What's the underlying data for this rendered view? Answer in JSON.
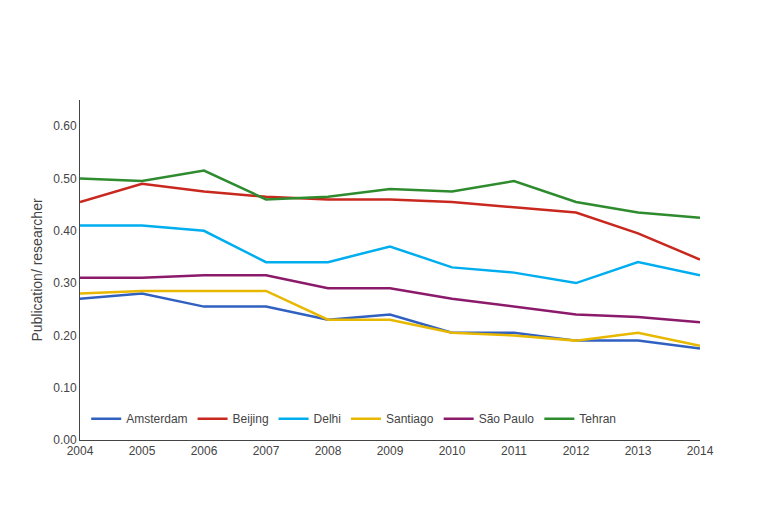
{
  "chart_data": {
    "type": "line",
    "x": [
      2004,
      2005,
      2006,
      2007,
      2008,
      2009,
      2010,
      2011,
      2012,
      2013,
      2014
    ],
    "series": [
      {
        "name": "Amsterdam",
        "color": "#3060C0",
        "values": [
          0.27,
          0.28,
          0.255,
          0.255,
          0.23,
          0.24,
          0.205,
          0.205,
          0.19,
          0.19,
          0.175
        ]
      },
      {
        "name": "Beijing",
        "color": "#C8281E",
        "values": [
          0.455,
          0.49,
          0.475,
          0.465,
          0.46,
          0.46,
          0.455,
          0.445,
          0.435,
          0.395,
          0.345
        ]
      },
      {
        "name": "Delhi",
        "color": "#00AEEF",
        "values": [
          0.41,
          0.41,
          0.4,
          0.34,
          0.34,
          0.37,
          0.33,
          0.32,
          0.3,
          0.34,
          0.315
        ]
      },
      {
        "name": "Santiago",
        "color": "#E8B800",
        "values": [
          0.28,
          0.285,
          0.285,
          0.285,
          0.23,
          0.23,
          0.205,
          0.2,
          0.19,
          0.205,
          0.18
        ]
      },
      {
        "name": "São Paulo",
        "color": "#8B1A6B",
        "values": [
          0.31,
          0.31,
          0.315,
          0.315,
          0.29,
          0.29,
          0.27,
          0.255,
          0.24,
          0.235,
          0.225
        ]
      },
      {
        "name": "Tehran",
        "color": "#2E8B2E",
        "values": [
          0.5,
          0.495,
          0.515,
          0.46,
          0.465,
          0.48,
          0.475,
          0.495,
          0.455,
          0.435,
          0.425
        ]
      }
    ],
    "ylabel": "Publication/ researcher",
    "xlim": [
      2004,
      2014
    ],
    "xticks": [
      2004,
      2005,
      2006,
      2007,
      2008,
      2009,
      2010,
      2011,
      2012,
      2013,
      2014
    ],
    "ylim": [
      0.0,
      0.65
    ],
    "yticks": [
      {
        "value": 0.0,
        "label": "0.00"
      },
      {
        "value": 0.1,
        "label": "0.10"
      },
      {
        "value": 0.2,
        "label": "0.20"
      },
      {
        "value": 0.3,
        "label": "0.30"
      },
      {
        "value": 0.4,
        "label": "0.40"
      },
      {
        "value": 0.5,
        "label": "0.50"
      },
      {
        "value": 0.6,
        "label": "0.60"
      }
    ],
    "grid": false,
    "legend": "lower left"
  }
}
